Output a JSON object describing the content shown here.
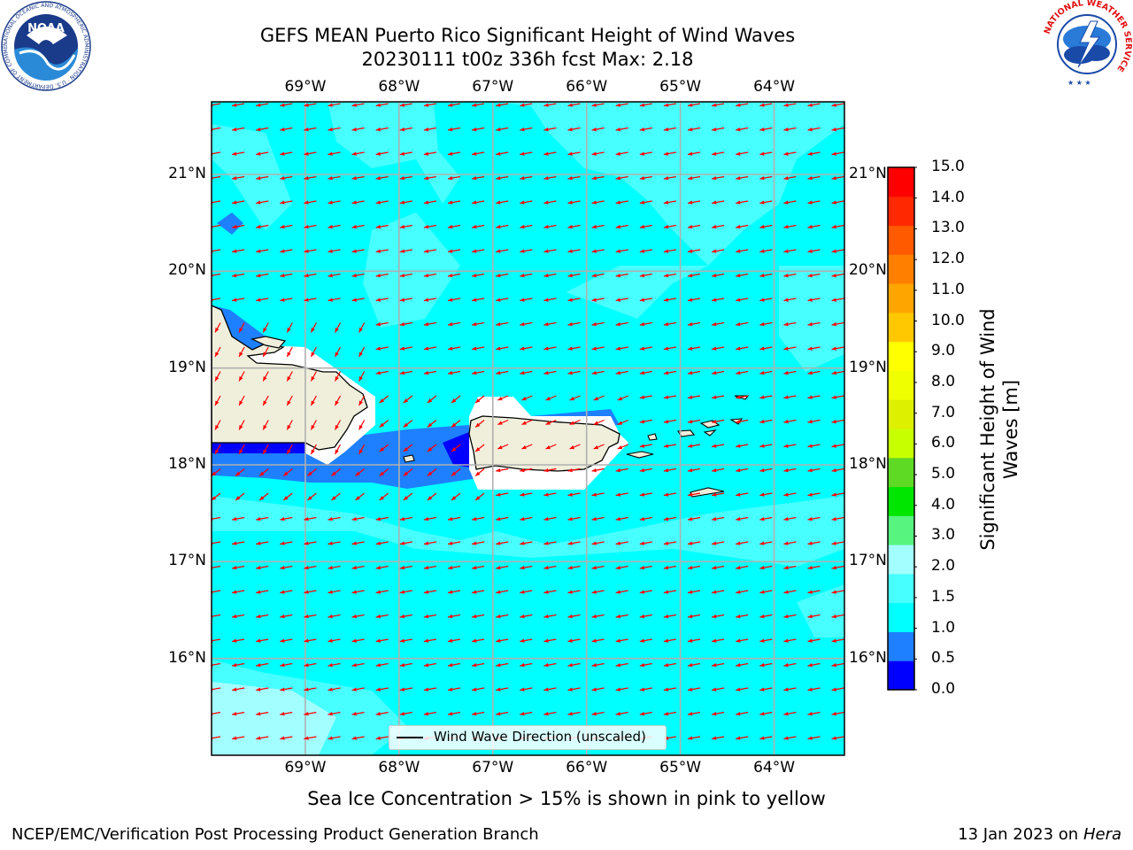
{
  "title": {
    "line1": "GEFS MEAN Puerto Rico Significant Height of Wind Waves",
    "line2": "20230111 t00z 336h fcst   Max: 2.18"
  },
  "axes": {
    "lon_labels": [
      "69°W",
      "68°W",
      "67°W",
      "66°W",
      "65°W",
      "64°W"
    ],
    "lat_labels": [
      "21°N",
      "20°N",
      "19°N",
      "18°N",
      "17°N",
      "16°N"
    ]
  },
  "map_data": {
    "lon_range": [
      -70.0,
      -63.25
    ],
    "lat_range": [
      15.0,
      21.75
    ],
    "grid_lons": [
      -69,
      -68,
      -67,
      -66,
      -65,
      -64
    ],
    "grid_lats": [
      21,
      20,
      19,
      18,
      17,
      16
    ],
    "wind_wave_direction": "westward (from east to west), with southwestward arrows near the Dominican Republic coast"
  },
  "colorbar": {
    "label": "Significant Height of Wind Waves [m]",
    "ticks": [
      "15.0",
      "14.0",
      "13.0",
      "12.0",
      "11.0",
      "10.0",
      "9.0",
      "8.0",
      "7.0",
      "6.0",
      "5.0",
      "4.0",
      "3.0",
      "2.0",
      "1.5",
      "1.0",
      "0.5",
      "0.0"
    ],
    "bins": [
      {
        "min": 0.0,
        "max": 0.5,
        "color": "#0000ff"
      },
      {
        "min": 0.5,
        "max": 1.0,
        "color": "#1e7fff"
      },
      {
        "min": 1.0,
        "max": 1.5,
        "color": "#00ffff"
      },
      {
        "min": 1.5,
        "max": 2.0,
        "color": "#47ffff"
      },
      {
        "min": 2.0,
        "max": 3.0,
        "color": "#a3ffff"
      },
      {
        "min": 3.0,
        "max": 4.0,
        "color": "#57f57f"
      },
      {
        "min": 4.0,
        "max": 5.0,
        "color": "#00e600"
      },
      {
        "min": 5.0,
        "max": 6.0,
        "color": "#5ed924"
      },
      {
        "min": 6.0,
        "max": 7.0,
        "color": "#c8ff00"
      },
      {
        "min": 7.0,
        "max": 8.0,
        "color": "#dcf000"
      },
      {
        "min": 8.0,
        "max": 9.0,
        "color": "#f0ff00"
      },
      {
        "min": 9.0,
        "max": 10.0,
        "color": "#ffff00"
      },
      {
        "min": 10.0,
        "max": 11.0,
        "color": "#ffc800"
      },
      {
        "min": 11.0,
        "max": 12.0,
        "color": "#ffa500"
      },
      {
        "min": 12.0,
        "max": 13.0,
        "color": "#ff8000"
      },
      {
        "min": 13.0,
        "max": 14.0,
        "color": "#ff5a00"
      },
      {
        "min": 14.0,
        "max": 15.0,
        "color": "#ff2800"
      },
      {
        "min": 15.0,
        "max": 16.0,
        "color": "#ff0000"
      }
    ]
  },
  "legend": {
    "label": "Wind Wave Direction (unscaled)"
  },
  "caption": "Sea Ice Concentration > 15% is shown in pink to yellow",
  "footer": {
    "left": "NCEP/EMC/Verification Post Processing Product Generation Branch",
    "date": "13 Jan 2023 on",
    "machine": "Hera"
  },
  "logos": {
    "noaa_text": "NOAA",
    "noaa_ring": "NATIONAL OCEANIC AND ATMOSPHERIC ADMINISTRATION · U.S. DEPARTMENT OF COMMERCE",
    "nws_ring": "NATIONAL WEATHER SERVICE"
  },
  "colors": {
    "arrow": "#ff0000",
    "land": "#efefdc",
    "gridline": "#b0b0b0"
  }
}
